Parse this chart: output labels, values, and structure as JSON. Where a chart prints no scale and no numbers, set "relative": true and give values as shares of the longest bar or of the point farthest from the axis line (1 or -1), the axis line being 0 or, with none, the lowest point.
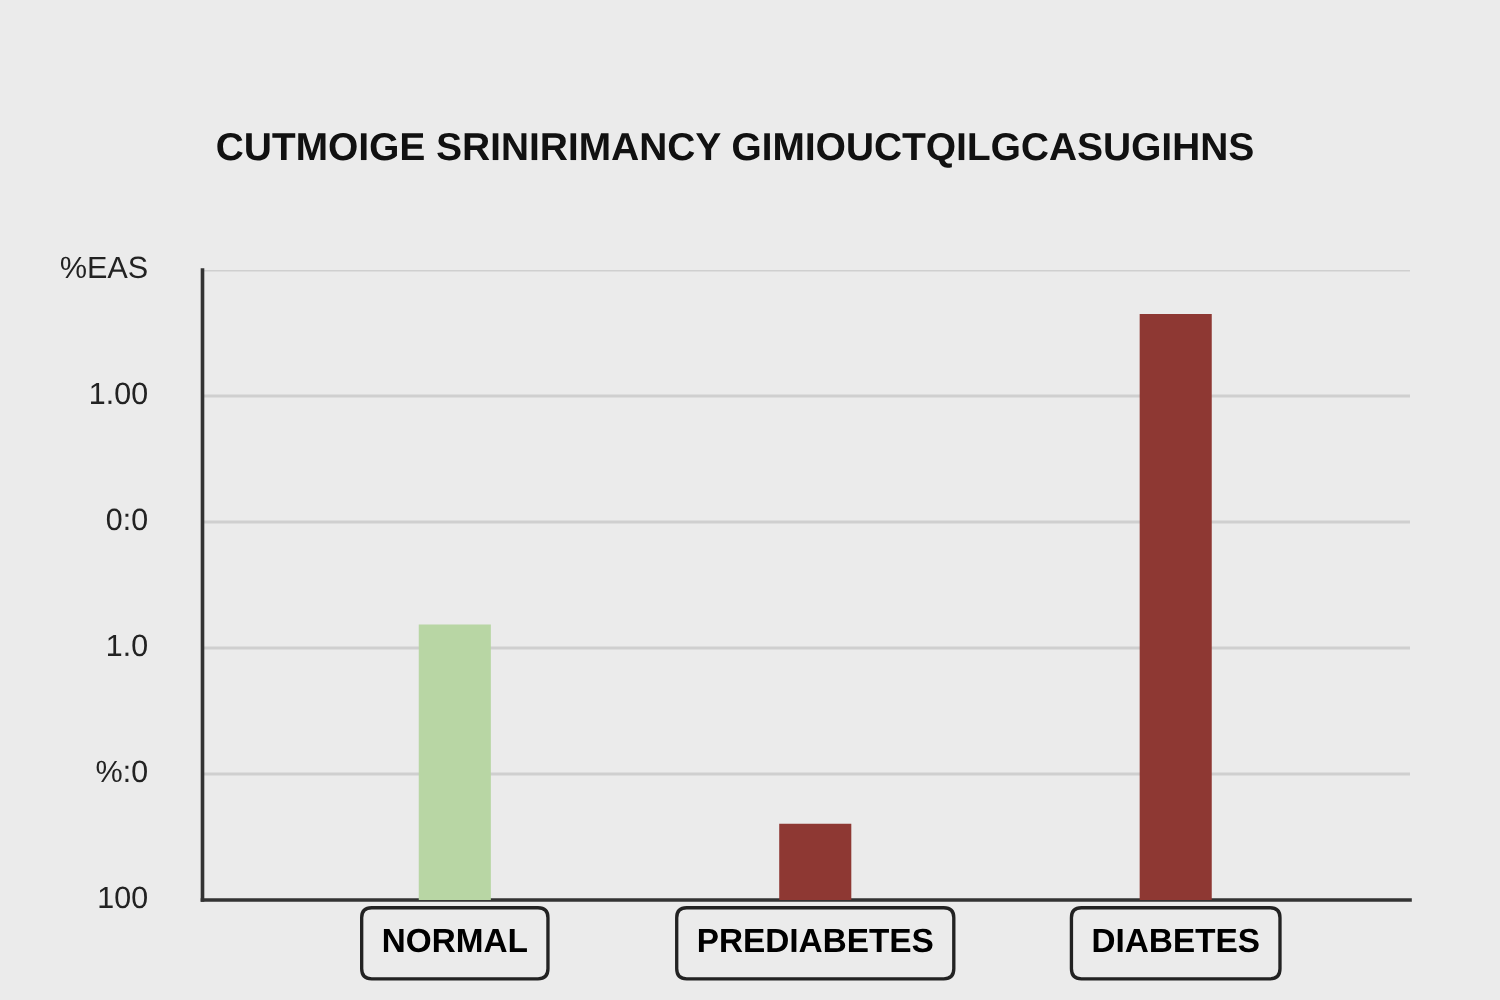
{
  "chart_data": {
    "type": "bar",
    "title": "CUTMOIGE SRINIRIMANCY GIMIOUCTQILGCASUGIHNS",
    "categories": [
      "NORMAL",
      "PREDIABETES",
      "DIABETES"
    ],
    "values": [
      0.47,
      0.13,
      1
    ],
    "colors": [
      "#b8d6a4",
      "#8e3833",
      "#8e3833"
    ],
    "relative": true,
    "annotations": [
      "100",
      "%:0",
      "1.0",
      "0:0",
      "1.00",
      "%EAS"
    ],
    "grid": "y"
  }
}
